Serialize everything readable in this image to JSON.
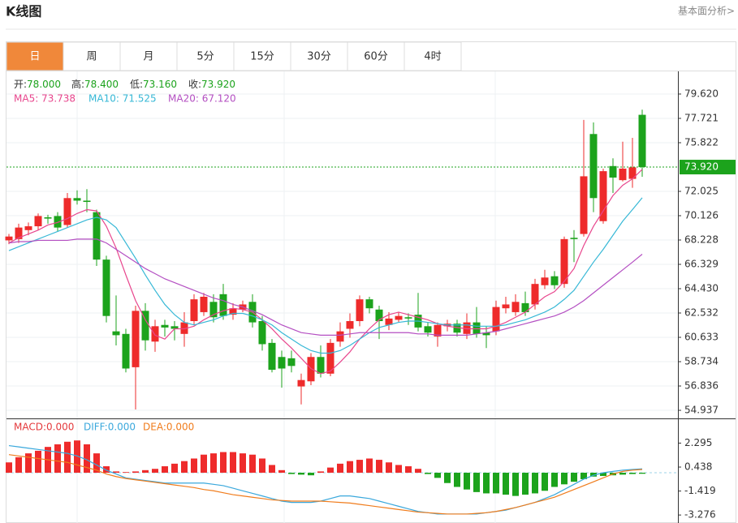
{
  "header": {
    "title": "K线图",
    "link": "基本面分析>"
  },
  "tabs": [
    "日",
    "周",
    "月",
    "5分",
    "15分",
    "30分",
    "60分",
    "4时"
  ],
  "active_tab": 0,
  "chart_data": [
    {
      "type": "candlestick",
      "info": [
        {
          "label": "开:",
          "value": "78.000"
        },
        {
          "label": "高:",
          "value": "78.400"
        },
        {
          "label": "低:",
          "value": "73.160"
        },
        {
          "label": "收:",
          "value": "73.920"
        }
      ],
      "up_color": "#ee2b2b",
      "down_color": "#1ca31c",
      "open": [
        68.2,
        68.3,
        69.0,
        69.3,
        70.0,
        70.1,
        69.4,
        71.5,
        71.3,
        70.4,
        66.7,
        61.1,
        60.9,
        58.3,
        62.7,
        60.3,
        61.6,
        61.5,
        60.9,
        61.9,
        62.6,
        63.4,
        64.0,
        62.4,
        62.8,
        63.4,
        61.9,
        60.2,
        59.1,
        59.0,
        56.8,
        57.2,
        59.1,
        57.8,
        60.3,
        61.3,
        61.9,
        63.6,
        62.8,
        61.6,
        62.0,
        62.2,
        62.4,
        61.5,
        60.7,
        61.5,
        61.7,
        60.9,
        61.8,
        61.0,
        61.1,
        62.9,
        62.6,
        63.3,
        63.2,
        64.7,
        65.4,
        64.8,
        68.4,
        68.7,
        76.5,
        69.7,
        74.0,
        72.9,
        73.0,
        78.0
      ],
      "high": [
        68.7,
        69.5,
        69.6,
        70.3,
        70.2,
        70.4,
        71.9,
        72.1,
        72.2,
        70.6,
        67.0,
        63.9,
        61.3,
        63.1,
        63.3,
        62.0,
        62.0,
        61.9,
        62.6,
        64.0,
        64.1,
        64.0,
        64.8,
        63.3,
        63.5,
        64.0,
        62.3,
        60.5,
        59.6,
        59.6,
        57.8,
        59.4,
        60.0,
        60.5,
        61.8,
        62.5,
        63.9,
        63.8,
        63.1,
        62.6,
        62.6,
        62.5,
        64.1,
        61.8,
        61.8,
        62.0,
        62.0,
        62.5,
        63.0,
        61.5,
        63.5,
        63.8,
        64.0,
        64.2,
        65.2,
        65.9,
        65.8,
        68.5,
        69.0,
        77.6,
        77.4,
        73.8,
        74.6,
        75.9,
        76.2,
        78.4
      ],
      "low": [
        67.9,
        68.0,
        68.6,
        69.0,
        69.5,
        68.9,
        69.2,
        71.0,
        70.4,
        66.2,
        61.8,
        60.0,
        57.9,
        55.0,
        59.6,
        59.5,
        60.7,
        60.4,
        59.9,
        61.6,
        62.3,
        61.8,
        62.0,
        62.0,
        62.6,
        61.4,
        59.6,
        57.9,
        56.7,
        57.9,
        55.4,
        56.9,
        57.5,
        57.6,
        59.9,
        60.6,
        61.5,
        62.5,
        60.5,
        61.2,
        61.8,
        61.6,
        61.1,
        60.7,
        59.9,
        61.1,
        60.7,
        60.5,
        60.6,
        59.8,
        60.8,
        62.5,
        62.3,
        62.3,
        62.8,
        64.4,
        64.4,
        64.5,
        66.5,
        68.5,
        70.4,
        69.5,
        71.9,
        72.8,
        72.3,
        73.16
      ],
      "close": [
        68.5,
        69.2,
        69.3,
        70.1,
        69.9,
        69.2,
        71.5,
        71.3,
        71.2,
        66.7,
        62.3,
        60.8,
        58.2,
        62.7,
        60.4,
        61.5,
        61.4,
        61.3,
        61.8,
        63.6,
        63.8,
        62.2,
        62.3,
        62.9,
        63.2,
        61.8,
        60.1,
        58.1,
        58.2,
        58.4,
        57.3,
        59.1,
        57.8,
        60.2,
        61.1,
        61.9,
        63.6,
        62.9,
        61.9,
        62.1,
        62.3,
        62.1,
        61.4,
        61.0,
        61.6,
        61.7,
        61.0,
        61.8,
        60.9,
        60.8,
        63.0,
        63.2,
        63.4,
        62.6,
        64.8,
        65.3,
        64.7,
        68.3,
        68.3,
        73.2,
        71.5,
        73.6,
        73.1,
        73.8,
        73.9,
        73.92
      ],
      "series": [
        {
          "name": "MA5: 73.738",
          "color": "#e8468d",
          "values": [
            68.0,
            68.4,
            68.7,
            69.0,
            69.4,
            69.6,
            69.9,
            70.3,
            70.6,
            70.5,
            69.3,
            67.6,
            65.5,
            63.5,
            62.0,
            60.8,
            60.5,
            61.3,
            61.3,
            61.5,
            62.0,
            62.4,
            62.7,
            62.9,
            62.8,
            62.6,
            62.0,
            61.3,
            60.5,
            59.8,
            59.0,
            58.2,
            57.8,
            58.0,
            58.7,
            59.5,
            60.5,
            61.3,
            62.0,
            62.4,
            62.6,
            62.4,
            62.2,
            62.0,
            61.7,
            61.5,
            61.4,
            61.3,
            61.3,
            61.3,
            61.5,
            61.8,
            62.2,
            62.6,
            63.2,
            63.8,
            64.2,
            65.0,
            66.0,
            67.8,
            69.3,
            70.5,
            71.7,
            72.5,
            73.0,
            73.738
          ]
        },
        {
          "name": "MA10: 71.525",
          "color": "#37b8d6",
          "values": [
            67.4,
            67.7,
            68.0,
            68.3,
            68.6,
            68.9,
            69.2,
            69.5,
            69.8,
            70.0,
            69.8,
            69.2,
            68.0,
            66.8,
            65.5,
            64.3,
            63.2,
            62.4,
            61.8,
            61.6,
            61.8,
            62.0,
            62.3,
            62.5,
            62.5,
            62.3,
            62.0,
            61.6,
            61.0,
            60.5,
            60.0,
            59.6,
            59.4,
            59.4,
            59.6,
            60.0,
            60.5,
            61.0,
            61.4,
            61.6,
            61.8,
            61.9,
            61.9,
            61.8,
            61.7,
            61.6,
            61.6,
            61.6,
            61.5,
            61.5,
            61.5,
            61.6,
            61.8,
            62.0,
            62.3,
            62.6,
            63.0,
            63.6,
            64.3,
            65.4,
            66.5,
            67.5,
            68.6,
            69.7,
            70.6,
            71.525
          ]
        },
        {
          "name": "MA20: 67.120",
          "color": "#b44fc2",
          "values": [
            68.0,
            68.1,
            68.1,
            68.2,
            68.2,
            68.2,
            68.2,
            68.3,
            68.3,
            68.3,
            68.0,
            67.5,
            67.0,
            66.5,
            66.0,
            65.6,
            65.2,
            64.9,
            64.6,
            64.3,
            64.0,
            63.7,
            63.5,
            63.2,
            63.0,
            62.7,
            62.4,
            62.0,
            61.6,
            61.3,
            61.0,
            60.9,
            60.8,
            60.8,
            60.8,
            60.9,
            61.0,
            61.0,
            61.0,
            61.0,
            61.0,
            61.0,
            60.9,
            60.9,
            60.8,
            60.8,
            60.8,
            60.8,
            60.9,
            61.0,
            61.1,
            61.3,
            61.5,
            61.7,
            61.9,
            62.1,
            62.3,
            62.6,
            63.0,
            63.5,
            64.1,
            64.7,
            65.3,
            65.9,
            66.5,
            67.12
          ]
        }
      ],
      "last_price": {
        "value": 73.92,
        "label": "73.920"
      },
      "last_price_color": "#1ca31c",
      "ylim": [
        54.37,
        81.39
      ],
      "yticks": [
        {
          "value": 79.62,
          "label": "79.620"
        },
        {
          "value": 77.721,
          "label": "77.721"
        },
        {
          "value": 75.822,
          "label": "75.822"
        },
        {
          "value": 72.025,
          "label": "72.025"
        },
        {
          "value": 70.126,
          "label": "70.126"
        },
        {
          "value": 68.228,
          "label": "68.228"
        },
        {
          "value": 66.329,
          "label": "66.329"
        },
        {
          "value": 64.43,
          "label": "64.430"
        },
        {
          "value": 62.532,
          "label": "62.532"
        },
        {
          "value": 60.633,
          "label": "60.633"
        },
        {
          "value": 58.734,
          "label": "58.734"
        },
        {
          "value": 56.836,
          "label": "56.836"
        },
        {
          "value": 54.937,
          "label": "54.937"
        }
      ],
      "grid": true
    },
    {
      "type": "macd",
      "name": "MACD:0.000",
      "color": "#e4393c",
      "up_color": "#ee2b2b",
      "down_color": "#1ca31c",
      "values": [
        0.8,
        1.2,
        1.5,
        1.7,
        2.0,
        2.2,
        2.4,
        2.5,
        2.2,
        1.5,
        0.5,
        0.1,
        0.05,
        0.1,
        0.2,
        0.3,
        0.5,
        0.7,
        0.9,
        1.1,
        1.4,
        1.5,
        1.6,
        1.6,
        1.5,
        1.4,
        1.1,
        0.6,
        0.2,
        -0.1,
        -0.15,
        -0.2,
        0.1,
        0.4,
        0.7,
        0.9,
        1.0,
        1.1,
        1.0,
        0.8,
        0.6,
        0.5,
        0.3,
        -0.1,
        -0.4,
        -0.8,
        -1.1,
        -1.3,
        -1.5,
        -1.6,
        -1.6,
        -1.7,
        -1.8,
        -1.7,
        -1.6,
        -1.4,
        -1.1,
        -0.9,
        -0.7,
        -0.5,
        -0.3,
        -0.25,
        -0.2,
        -0.15,
        -0.1,
        -0.08
      ],
      "series": [
        {
          "name": "DIFF:0.000",
          "color": "#3aa8dc",
          "values": [
            2.1,
            2.0,
            1.9,
            1.8,
            1.7,
            1.6,
            1.5,
            1.3,
            1.0,
            0.6,
            0.2,
            -0.1,
            -0.4,
            -0.5,
            -0.6,
            -0.7,
            -0.8,
            -0.8,
            -0.8,
            -0.8,
            -0.8,
            -0.9,
            -1.0,
            -1.2,
            -1.4,
            -1.6,
            -1.8,
            -2.0,
            -2.2,
            -2.3,
            -2.3,
            -2.3,
            -2.2,
            -2.0,
            -1.8,
            -1.8,
            -1.9,
            -2.0,
            -2.2,
            -2.4,
            -2.6,
            -2.8,
            -3.0,
            -3.1,
            -3.2,
            -3.2,
            -3.2,
            -3.2,
            -3.2,
            -3.1,
            -3.0,
            -2.9,
            -2.7,
            -2.5,
            -2.3,
            -2.0,
            -1.7,
            -1.3,
            -0.9,
            -0.5,
            -0.2,
            0.0,
            0.1,
            0.2,
            0.25,
            0.3
          ]
        },
        {
          "name": "DEA:0.000",
          "color": "#f07c1c",
          "values": [
            1.4,
            1.3,
            1.2,
            1.1,
            1.0,
            0.9,
            0.8,
            0.6,
            0.4,
            0.2,
            -0.1,
            -0.3,
            -0.45,
            -0.55,
            -0.65,
            -0.75,
            -0.85,
            -0.95,
            -1.05,
            -1.15,
            -1.3,
            -1.4,
            -1.55,
            -1.7,
            -1.8,
            -1.9,
            -2.0,
            -2.1,
            -2.15,
            -2.2,
            -2.2,
            -2.2,
            -2.2,
            -2.25,
            -2.3,
            -2.35,
            -2.45,
            -2.55,
            -2.65,
            -2.75,
            -2.85,
            -2.95,
            -3.05,
            -3.1,
            -3.15,
            -3.2,
            -3.2,
            -3.2,
            -3.15,
            -3.1,
            -3.0,
            -2.85,
            -2.7,
            -2.5,
            -2.3,
            -2.1,
            -1.9,
            -1.6,
            -1.3,
            -1.0,
            -0.7,
            -0.4,
            -0.1,
            0.1,
            0.2,
            0.25
          ]
        }
      ],
      "ylim": [
        -3.77,
        4.02
      ],
      "yticks": [
        2.295,
        0.438,
        -1.419,
        -3.276
      ]
    }
  ]
}
